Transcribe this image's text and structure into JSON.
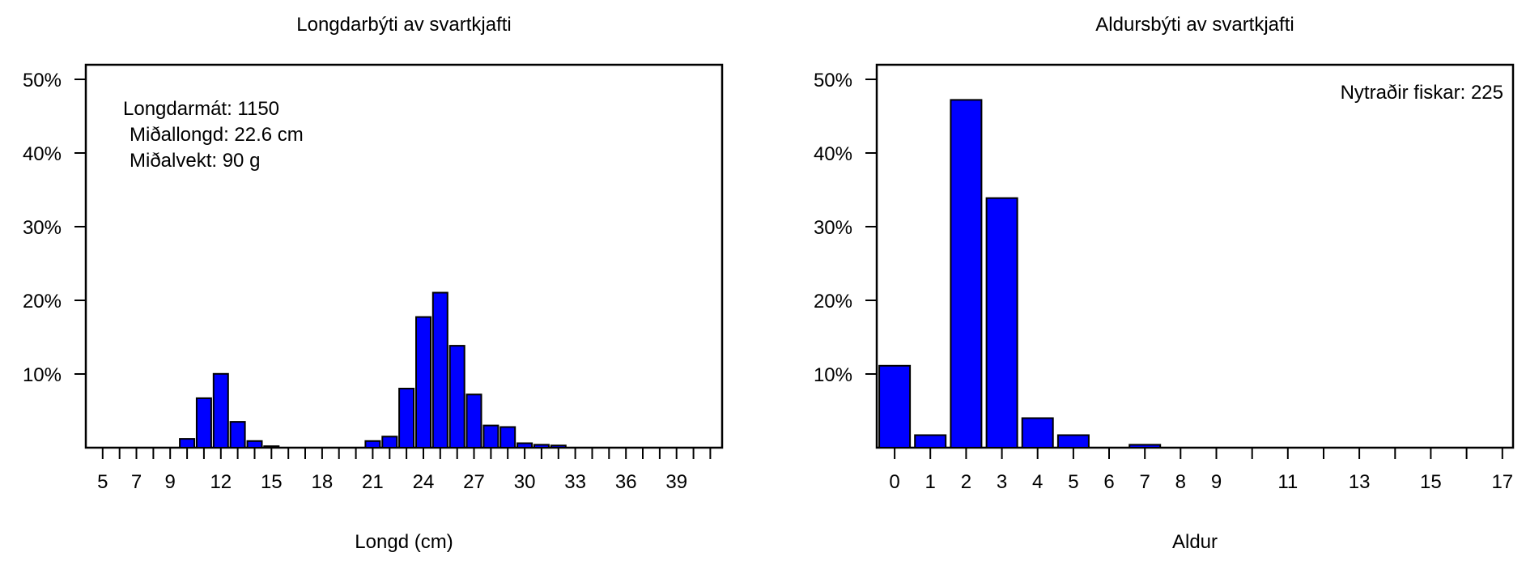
{
  "chart_data": [
    {
      "type": "bar",
      "title": "Longdarbýti av svartkjafti",
      "xlabel": "Longd (cm)",
      "ylabel": "",
      "x": [
        10,
        11,
        12,
        13,
        14,
        15,
        21,
        22,
        23,
        24,
        25,
        26,
        27,
        28,
        29,
        30,
        31,
        32
      ],
      "values": [
        1.2,
        6.7,
        10.0,
        3.5,
        0.9,
        0.2,
        0.9,
        1.5,
        8.0,
        17.7,
        21.0,
        13.8,
        7.2,
        3.0,
        2.8,
        0.6,
        0.4,
        0.3
      ],
      "x_ticks": [
        5,
        6,
        7,
        8,
        9,
        10,
        11,
        12,
        13,
        14,
        15,
        16,
        17,
        18,
        19,
        20,
        21,
        22,
        23,
        24,
        25,
        26,
        27,
        28,
        29,
        30,
        31,
        32,
        33,
        34,
        35,
        36,
        37,
        38,
        39,
        40,
        41
      ],
      "x_tick_labels": [
        "5",
        "7",
        "9",
        "12",
        "15",
        "18",
        "21",
        "24",
        "27",
        "30",
        "33",
        "36",
        "39"
      ],
      "x_tick_label_values": [
        5,
        7,
        9,
        12,
        15,
        18,
        21,
        24,
        27,
        30,
        33,
        36,
        39
      ],
      "xlim": [
        4,
        41.7
      ],
      "ylim": [
        0,
        50
      ],
      "y_ticks": [
        10,
        20,
        30,
        40,
        50
      ],
      "y_tick_labels": [
        "10%",
        "20%",
        "30%",
        "40%",
        "50%"
      ],
      "annotation": [
        "Longdarmát: 1150",
        "Miðallongd: 22.6 cm",
        "Miðalvekt: 90 g"
      ],
      "bar_color": "#0000ff",
      "grid": false
    },
    {
      "type": "bar",
      "title": "Aldursbýti av svartkjafti",
      "xlabel": "Aldur",
      "ylabel": "",
      "x": [
        0,
        1,
        2,
        3,
        4,
        5,
        6,
        7
      ],
      "values": [
        11.1,
        1.7,
        47.1,
        33.8,
        4.0,
        1.7,
        0.0,
        0.4
      ],
      "x_ticks": [
        0,
        1,
        2,
        3,
        4,
        5,
        6,
        7,
        8,
        9,
        10,
        11,
        12,
        13,
        14,
        15,
        16,
        17
      ],
      "x_tick_labels": [
        "0",
        "1",
        "2",
        "3",
        "4",
        "5",
        "6",
        "7",
        "8",
        "9",
        "11",
        "13",
        "15",
        "17"
      ],
      "x_tick_label_values": [
        0,
        1,
        2,
        3,
        4,
        5,
        6,
        7,
        8,
        9,
        11,
        13,
        15,
        17
      ],
      "xlim": [
        -0.5,
        17.3
      ],
      "ylim": [
        0,
        50
      ],
      "y_ticks": [
        10,
        20,
        30,
        40,
        50
      ],
      "y_tick_labels": [
        "10%",
        "20%",
        "30%",
        "40%",
        "50%"
      ],
      "annotation": [
        "Nytraðir fiskar: 225"
      ],
      "bar_color": "#0000ff",
      "grid": false
    }
  ]
}
